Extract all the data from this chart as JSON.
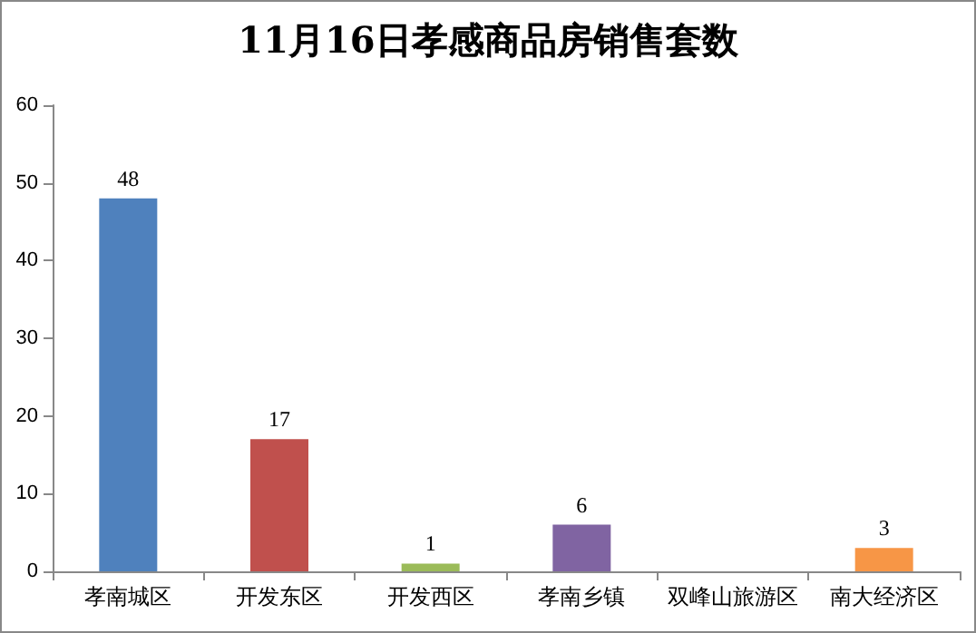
{
  "chart_data": {
    "type": "bar",
    "title": "11月16日孝感商品房销售套数",
    "categories": [
      "孝南城区",
      "开发东区",
      "开发西区",
      "孝南乡镇",
      "双峰山旅游区",
      "南大经济区"
    ],
    "values": [
      48,
      17,
      1,
      6,
      0,
      3
    ],
    "colors": [
      "#4f81bd",
      "#c0504d",
      "#9bbb59",
      "#8064a2",
      "#4bacc6",
      "#f79646"
    ],
    "value_labels": [
      "48",
      "17",
      "1",
      "6",
      null,
      "3"
    ],
    "ylim": [
      0,
      60
    ],
    "yticks": [
      0,
      10,
      20,
      30,
      40,
      50,
      60
    ],
    "grid": false
  }
}
